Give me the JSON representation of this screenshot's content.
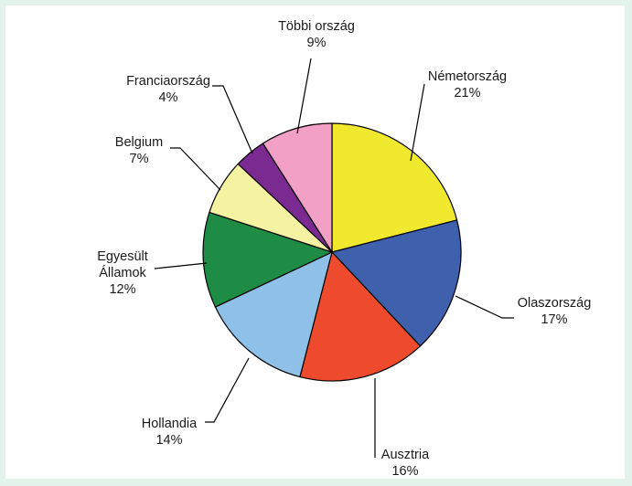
{
  "chart_data": {
    "type": "pie",
    "title": "",
    "unit": "%",
    "start_angle_deg": 0,
    "direction": "clockwise",
    "slices": [
      {
        "lines": [
          "Németország"
        ],
        "pct_label": "21%",
        "value": 21,
        "color": "#f0e92e"
      },
      {
        "lines": [
          "Olaszország"
        ],
        "pct_label": "17%",
        "value": 17,
        "color": "#3f61ad"
      },
      {
        "lines": [
          "Ausztria"
        ],
        "pct_label": "16%",
        "value": 16,
        "color": "#ee4a2d"
      },
      {
        "lines": [
          "Hollandia"
        ],
        "pct_label": "14%",
        "value": 14,
        "color": "#8ec0e8"
      },
      {
        "lines": [
          "Egyesült",
          "Államok"
        ],
        "pct_label": "12%",
        "value": 12,
        "color": "#1f8c45"
      },
      {
        "lines": [
          "Belgium"
        ],
        "pct_label": "7%",
        "value": 7,
        "color": "#f5f2a2"
      },
      {
        "lines": [
          "Franciaország"
        ],
        "pct_label": "4%",
        "value": 4,
        "color": "#7b2a91"
      },
      {
        "lines": [
          "Többi ország"
        ],
        "pct_label": "9%",
        "value": 9,
        "color": "#f3a0c6"
      }
    ]
  }
}
